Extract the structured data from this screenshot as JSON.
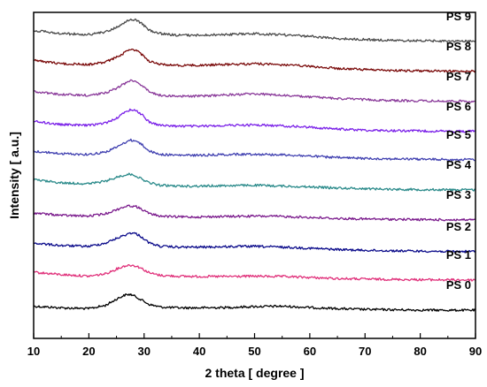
{
  "chart_data": {
    "type": "line",
    "title": "",
    "xlabel": "2 theta [ degree ]",
    "ylabel": "Intensity [ a.u.]",
    "xlim": [
      10,
      90
    ],
    "xticks": [
      "10",
      "20",
      "30",
      "40",
      "50",
      "60",
      "70",
      "80",
      "90"
    ],
    "yticks_shown": false,
    "grid": false,
    "legend": "labels placed at right end of each trace",
    "stacked_offset_traces": true,
    "x": [
      10,
      15,
      20,
      23,
      25,
      26.5,
      27.5,
      28.5,
      29.5,
      31,
      33,
      36,
      40,
      45,
      50,
      55,
      60,
      65,
      70,
      75,
      80,
      85,
      90
    ],
    "series": [
      {
        "name": "PS 0",
        "color": "#000000",
        "values": [
          0.3,
          0.2,
          0.15,
          0.35,
          0.75,
          1.0,
          1.05,
          0.9,
          0.7,
          0.4,
          0.25,
          0.2,
          0.2,
          0.22,
          0.28,
          0.3,
          0.22,
          0.15,
          0.1,
          0.08,
          0.06,
          0.05,
          0.05
        ]
      },
      {
        "name": "PS 1",
        "color": "#e0307a",
        "values": [
          0.55,
          0.4,
          0.3,
          0.45,
          0.75,
          0.95,
          1.0,
          0.95,
          0.8,
          0.5,
          0.35,
          0.3,
          0.28,
          0.28,
          0.3,
          0.28,
          0.22,
          0.15,
          0.12,
          0.1,
          0.08,
          0.07,
          0.06
        ]
      },
      {
        "name": "PS 2",
        "color": "#0a0a8a",
        "values": [
          0.6,
          0.45,
          0.4,
          0.6,
          0.9,
          1.1,
          1.25,
          1.2,
          1.0,
          0.6,
          0.4,
          0.35,
          0.35,
          0.38,
          0.4,
          0.35,
          0.28,
          0.2,
          0.15,
          0.12,
          0.1,
          0.08,
          0.08
        ]
      },
      {
        "name": "PS 3",
        "color": "#7a1a8c",
        "values": [
          0.5,
          0.35,
          0.3,
          0.45,
          0.7,
          0.9,
          0.95,
          0.9,
          0.75,
          0.45,
          0.3,
          0.25,
          0.25,
          0.28,
          0.3,
          0.28,
          0.22,
          0.15,
          0.12,
          0.1,
          0.08,
          0.07,
          0.06
        ]
      },
      {
        "name": "PS 4",
        "color": "#2a8a8a",
        "values": [
          0.7,
          0.5,
          0.45,
          0.6,
          0.85,
          1.0,
          1.05,
          0.95,
          0.75,
          0.5,
          0.35,
          0.3,
          0.3,
          0.33,
          0.35,
          0.3,
          0.25,
          0.18,
          0.14,
          0.1,
          0.08,
          0.07,
          0.06
        ]
      },
      {
        "name": "PS 5",
        "color": "#4040b0",
        "values": [
          0.6,
          0.45,
          0.4,
          0.55,
          0.85,
          1.15,
          1.3,
          1.25,
          1.05,
          0.6,
          0.4,
          0.35,
          0.35,
          0.4,
          0.42,
          0.38,
          0.3,
          0.2,
          0.15,
          0.12,
          0.1,
          0.08,
          0.08
        ]
      },
      {
        "name": "PS 6",
        "color": "#7a20e8",
        "values": [
          0.7,
          0.5,
          0.45,
          0.6,
          0.9,
          1.25,
          1.45,
          1.4,
          1.15,
          0.65,
          0.45,
          0.4,
          0.4,
          0.45,
          0.48,
          0.42,
          0.33,
          0.22,
          0.15,
          0.12,
          0.1,
          0.08,
          0.08
        ]
      },
      {
        "name": "PS 7",
        "color": "#8a3a9a",
        "values": [
          0.7,
          0.5,
          0.45,
          0.6,
          0.9,
          1.2,
          1.4,
          1.35,
          1.1,
          0.65,
          0.45,
          0.4,
          0.4,
          0.48,
          0.55,
          0.45,
          0.35,
          0.25,
          0.18,
          0.12,
          0.1,
          0.08,
          0.08
        ]
      },
      {
        "name": "PS 8",
        "color": "#7a0a0a",
        "values": [
          0.75,
          0.55,
          0.5,
          0.65,
          0.95,
          1.25,
          1.45,
          1.4,
          1.15,
          0.7,
          0.5,
          0.45,
          0.45,
          0.5,
          0.55,
          0.48,
          0.38,
          0.25,
          0.18,
          0.12,
          0.1,
          0.08,
          0.08
        ]
      },
      {
        "name": "PS 9",
        "color": "#4a4a4a",
        "values": [
          0.75,
          0.55,
          0.5,
          0.65,
          0.95,
          1.25,
          1.45,
          1.4,
          1.2,
          0.75,
          0.55,
          0.45,
          0.45,
          0.5,
          0.55,
          0.48,
          0.38,
          0.25,
          0.18,
          0.12,
          0.1,
          0.08,
          0.08
        ]
      }
    ]
  }
}
